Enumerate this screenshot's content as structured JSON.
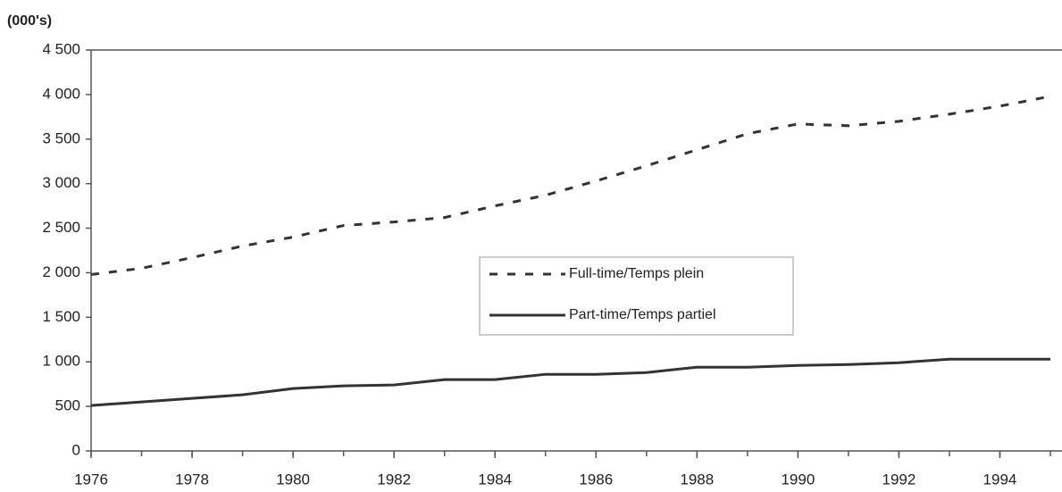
{
  "chart_data": {
    "type": "line",
    "y_label": "(000's)",
    "x": [
      1976,
      1977,
      1978,
      1979,
      1980,
      1981,
      1982,
      1983,
      1984,
      1985,
      1986,
      1987,
      1988,
      1989,
      1990,
      1991,
      1992,
      1993,
      1994,
      1995
    ],
    "series": [
      {
        "name": "Full-time/Temps plein",
        "color": "#333333",
        "linestyle": "dashed",
        "values": [
          1980,
          2050,
          2170,
          2300,
          2400,
          2530,
          2570,
          2620,
          2750,
          2870,
          3030,
          3200,
          3380,
          3560,
          3670,
          3650,
          3700,
          3780,
          3870,
          3980
        ]
      },
      {
        "name": "Part-time/Temps partiel",
        "color": "#333333",
        "linestyle": "solid",
        "values": [
          510,
          550,
          590,
          630,
          700,
          730,
          740,
          800,
          800,
          860,
          860,
          880,
          940,
          940,
          960,
          970,
          990,
          1030,
          1030,
          1030
        ]
      }
    ],
    "xlim": [
      1976,
      1995
    ],
    "xticks": [
      1976,
      1978,
      1980,
      1982,
      1984,
      1986,
      1988,
      1990,
      1992,
      1994
    ],
    "ylim": [
      0,
      4500
    ],
    "yticks": [
      0,
      500,
      {
        "value": 1000,
        "label": "1 000"
      },
      {
        "value": 1500,
        "label": "1 500"
      },
      {
        "value": 2000,
        "label": "2 000"
      },
      {
        "value": 2500,
        "label": "2 500"
      },
      {
        "value": 3000,
        "label": "3 000"
      },
      {
        "value": 3500,
        "label": "3 500"
      },
      {
        "value": 4000,
        "label": "4 000"
      },
      {
        "value": 4500,
        "label": "4 500"
      }
    ],
    "grid": false,
    "legend": "center"
  }
}
